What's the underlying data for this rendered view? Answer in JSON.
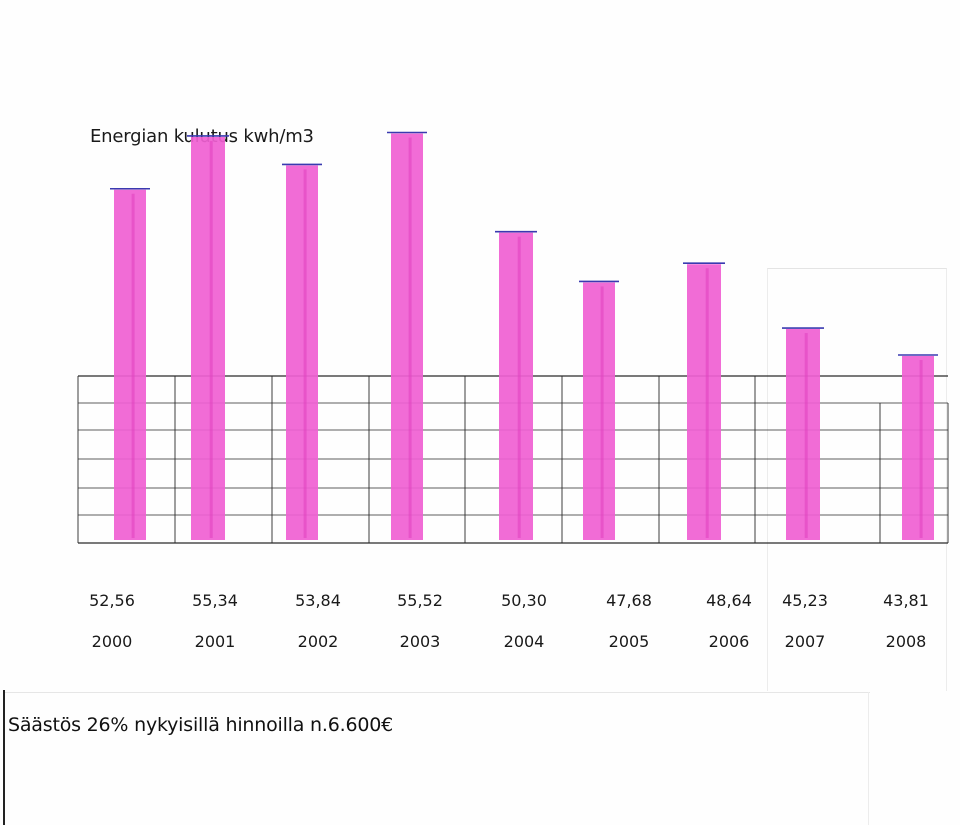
{
  "chart_data": {
    "type": "bar",
    "title": "Energian kulutus  kwh/m3",
    "categories": [
      "2000",
      "2001",
      "2002",
      "2003",
      "2004",
      "2005",
      "2006",
      "2007",
      "2008"
    ],
    "value_labels": [
      "52,56",
      "55,34",
      "53,84",
      "55,52",
      "50,30",
      "47,68",
      "48,64",
      "45,23",
      "43,81"
    ],
    "values": [
      52.56,
      55.34,
      53.84,
      55.52,
      50.3,
      47.68,
      48.64,
      45.23,
      43.81
    ],
    "xlabel": "",
    "ylabel": "",
    "grid": true,
    "bar_color": "#f060d2",
    "bar_color_dark": "#e040c0",
    "top_mark_color": "#3a3ab0"
  },
  "footer": {
    "note": "Säästös 26%  nykyisillä hinnoilla n.6.600€"
  }
}
